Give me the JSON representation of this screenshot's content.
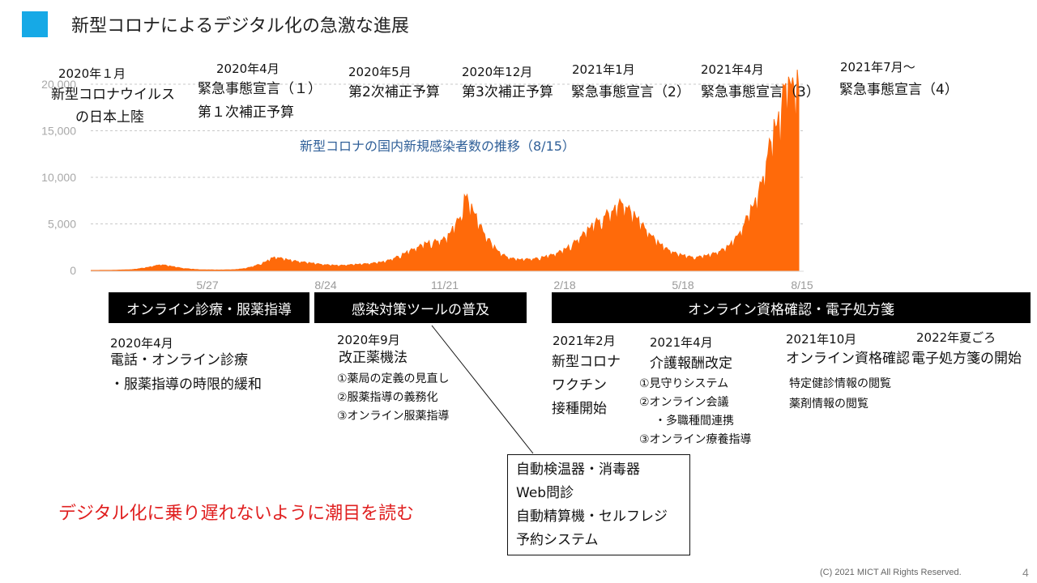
{
  "title": "新型コロナによるデジタル化の急激な進展",
  "chart_data": {
    "type": "area",
    "title": "新型コロナの国内新規感染者数の推移（8/15）",
    "y_ticks": [
      "20,000",
      "15,000",
      "10,000",
      "5,000",
      "0"
    ],
    "ylim": [
      0,
      20000
    ],
    "x_ticks": [
      "5/27",
      "8/24",
      "11/21",
      "2/18",
      "5/18",
      "8/15"
    ],
    "color": "#ff6a0a",
    "grid": true,
    "series": [
      {
        "x": 0,
        "y": 0
      },
      {
        "x": 20,
        "y": 10
      },
      {
        "x": 40,
        "y": 80
      },
      {
        "x": 55,
        "y": 300
      },
      {
        "x": 68,
        "y": 600
      },
      {
        "x": 78,
        "y": 420
      },
      {
        "x": 90,
        "y": 200
      },
      {
        "x": 105,
        "y": 70
      },
      {
        "x": 125,
        "y": 40
      },
      {
        "x": 140,
        "y": 80
      },
      {
        "x": 150,
        "y": 200
      },
      {
        "x": 160,
        "y": 500
      },
      {
        "x": 170,
        "y": 900
      },
      {
        "x": 178,
        "y": 1400
      },
      {
        "x": 186,
        "y": 1200
      },
      {
        "x": 195,
        "y": 1000
      },
      {
        "x": 210,
        "y": 800
      },
      {
        "x": 225,
        "y": 600
      },
      {
        "x": 240,
        "y": 500
      },
      {
        "x": 255,
        "y": 600
      },
      {
        "x": 270,
        "y": 700
      },
      {
        "x": 285,
        "y": 900
      },
      {
        "x": 295,
        "y": 1300
      },
      {
        "x": 305,
        "y": 1800
      },
      {
        "x": 315,
        "y": 2300
      },
      {
        "x": 325,
        "y": 2800
      },
      {
        "x": 335,
        "y": 3000
      },
      {
        "x": 345,
        "y": 3300
      },
      {
        "x": 352,
        "y": 4500
      },
      {
        "x": 358,
        "y": 5500
      },
      {
        "x": 362,
        "y": 7800
      },
      {
        "x": 366,
        "y": 7000
      },
      {
        "x": 372,
        "y": 5800
      },
      {
        "x": 380,
        "y": 4000
      },
      {
        "x": 388,
        "y": 2800
      },
      {
        "x": 396,
        "y": 1800
      },
      {
        "x": 405,
        "y": 1300
      },
      {
        "x": 415,
        "y": 1100
      },
      {
        "x": 430,
        "y": 1200
      },
      {
        "x": 440,
        "y": 1400
      },
      {
        "x": 450,
        "y": 1700
      },
      {
        "x": 460,
        "y": 2200
      },
      {
        "x": 470,
        "y": 3000
      },
      {
        "x": 480,
        "y": 4000
      },
      {
        "x": 490,
        "y": 5000
      },
      {
        "x": 500,
        "y": 5800
      },
      {
        "x": 508,
        "y": 6300
      },
      {
        "x": 514,
        "y": 7000
      },
      {
        "x": 520,
        "y": 6400
      },
      {
        "x": 528,
        "y": 5500
      },
      {
        "x": 538,
        "y": 4200
      },
      {
        "x": 548,
        "y": 3000
      },
      {
        "x": 558,
        "y": 2200
      },
      {
        "x": 568,
        "y": 1700
      },
      {
        "x": 580,
        "y": 1400
      },
      {
        "x": 590,
        "y": 1400
      },
      {
        "x": 600,
        "y": 1600
      },
      {
        "x": 610,
        "y": 2000
      },
      {
        "x": 618,
        "y": 2500
      },
      {
        "x": 625,
        "y": 3300
      },
      {
        "x": 632,
        "y": 4500
      },
      {
        "x": 638,
        "y": 6000
      },
      {
        "x": 644,
        "y": 7000
      },
      {
        "x": 650,
        "y": 9000
      },
      {
        "x": 656,
        "y": 12000
      },
      {
        "x": 662,
        "y": 14500
      },
      {
        "x": 668,
        "y": 15500
      },
      {
        "x": 672,
        "y": 19000
      },
      {
        "x": 676,
        "y": 20000
      },
      {
        "x": 680,
        "y": 18500
      },
      {
        "x": 686,
        "y": 19500
      }
    ]
  },
  "events": [
    {
      "date": "2020年１月",
      "lines": [
        "新型コロナウイルス",
        "の日本上陸"
      ]
    },
    {
      "date": "2020年4月",
      "lines": [
        "緊急事態宣言（１）",
        "第１次補正予算"
      ]
    },
    {
      "date": "2020年5月",
      "lines": [
        "第2次補正予算"
      ]
    },
    {
      "date": "2020年12月",
      "lines": [
        "第3次補正予算"
      ]
    },
    {
      "date": "2021年1月",
      "lines": [
        "緊急事態宣言（2）"
      ]
    },
    {
      "date": "2021年4月",
      "lines": [
        "緊急事態宣言（3）"
      ]
    },
    {
      "date": "2021年7月～",
      "lines": [
        "緊急事態宣言（4）"
      ]
    }
  ],
  "bars": [
    "オンライン診療・服薬指導",
    "感染対策ツールの普及",
    "オンライン資格確認・電子処方箋"
  ],
  "milestones": [
    {
      "date": "2020年4月",
      "lines": [
        "電話・オンライン診療",
        "・服薬指導の時限的緩和"
      ],
      "subs": []
    },
    {
      "date": "2020年9月",
      "lines": [
        "改正薬機法"
      ],
      "subs": [
        "①薬局の定義の見直し",
        "②服薬指導の義務化",
        "③オンライン服薬指導"
      ]
    },
    {
      "date": "2021年2月",
      "lines": [
        "新型コロナ",
        "ワクチン",
        "接種開始"
      ],
      "subs": []
    },
    {
      "date": "2021年4月",
      "lines": [
        "介護報酬改定"
      ],
      "subs": [
        "①見守りシステム",
        "②オンライン会議",
        "・多職種間連携",
        "③オンライン療養指導"
      ]
    },
    {
      "date": "2021年10月",
      "lines": [
        "オンライン資格確認"
      ],
      "subs": [
        "特定健診情報の閲覧",
        "薬剤情報の閲覧"
      ]
    },
    {
      "date": "2022年夏ごろ",
      "lines": [
        "電子処方箋の開始"
      ],
      "subs": []
    }
  ],
  "callout": [
    "自動検温器・消毒器",
    "Web問診",
    "自動精算機・セルフレジ",
    "予約システム"
  ],
  "message": "デジタル化に乗り遅れないように潮目を読む",
  "footer": "(C) 2021 MICT All Rights Reserved.",
  "page_number": "4",
  "colors": {
    "accent": "#16a9e6",
    "chart": "#ff6a0a",
    "message": "#e02020"
  }
}
